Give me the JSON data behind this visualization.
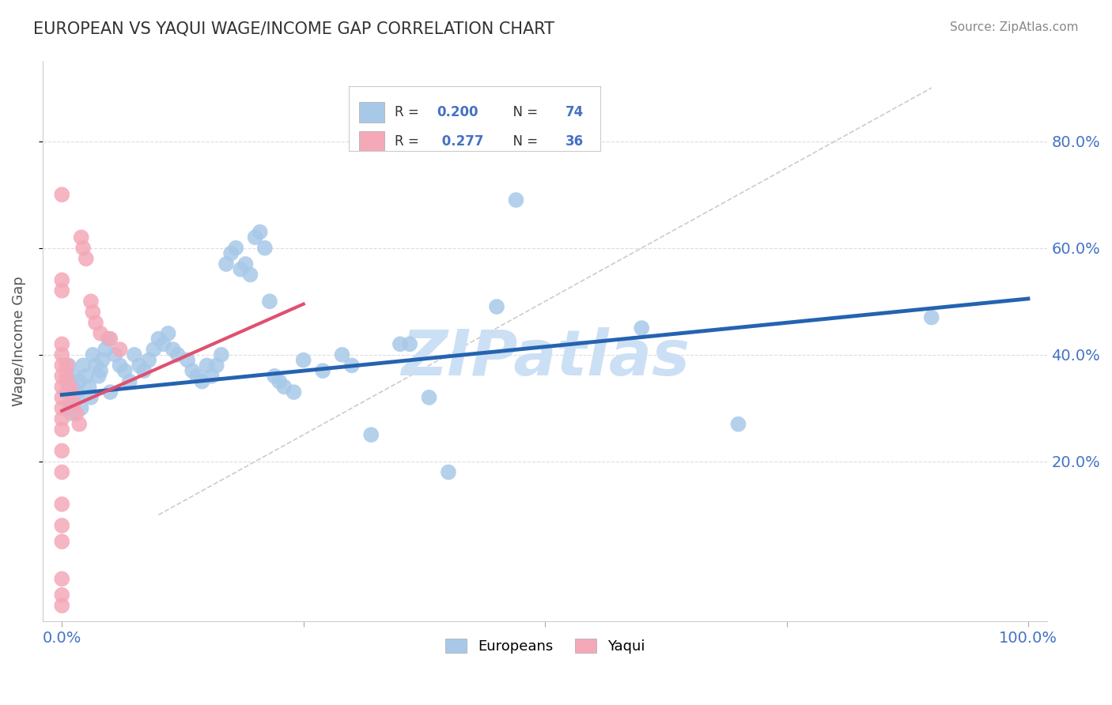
{
  "title": "EUROPEAN VS YAQUI WAGE/INCOME GAP CORRELATION CHART",
  "source": "Source: ZipAtlas.com",
  "ylabel": "Wage/Income Gap",
  "xlim": [
    -0.02,
    1.02
  ],
  "ylim": [
    -0.1,
    0.95
  ],
  "european_color": "#a8c8e8",
  "yaqui_color": "#f4a8b8",
  "watermark": "ZIPatlas",
  "watermark_color": "#cce0f5",
  "background_color": "#ffffff",
  "grid_color": "#dddddd",
  "title_color": "#333333",
  "european_points": [
    [
      0.005,
      0.33
    ],
    [
      0.005,
      0.35
    ],
    [
      0.007,
      0.38
    ],
    [
      0.008,
      0.3
    ],
    [
      0.01,
      0.29
    ],
    [
      0.01,
      0.31
    ],
    [
      0.012,
      0.36
    ],
    [
      0.012,
      0.34
    ],
    [
      0.015,
      0.32
    ],
    [
      0.015,
      0.33
    ],
    [
      0.018,
      0.35
    ],
    [
      0.02,
      0.3
    ],
    [
      0.022,
      0.38
    ],
    [
      0.025,
      0.36
    ],
    [
      0.028,
      0.34
    ],
    [
      0.03,
      0.32
    ],
    [
      0.032,
      0.4
    ],
    [
      0.035,
      0.38
    ],
    [
      0.038,
      0.36
    ],
    [
      0.04,
      0.37
    ],
    [
      0.042,
      0.39
    ],
    [
      0.045,
      0.41
    ],
    [
      0.048,
      0.43
    ],
    [
      0.05,
      0.33
    ],
    [
      0.055,
      0.4
    ],
    [
      0.06,
      0.38
    ],
    [
      0.065,
      0.37
    ],
    [
      0.07,
      0.35
    ],
    [
      0.075,
      0.4
    ],
    [
      0.08,
      0.38
    ],
    [
      0.085,
      0.37
    ],
    [
      0.09,
      0.39
    ],
    [
      0.095,
      0.41
    ],
    [
      0.1,
      0.43
    ],
    [
      0.105,
      0.42
    ],
    [
      0.11,
      0.44
    ],
    [
      0.115,
      0.41
    ],
    [
      0.12,
      0.4
    ],
    [
      0.13,
      0.39
    ],
    [
      0.135,
      0.37
    ],
    [
      0.14,
      0.36
    ],
    [
      0.145,
      0.35
    ],
    [
      0.15,
      0.38
    ],
    [
      0.155,
      0.36
    ],
    [
      0.16,
      0.38
    ],
    [
      0.165,
      0.4
    ],
    [
      0.17,
      0.57
    ],
    [
      0.175,
      0.59
    ],
    [
      0.18,
      0.6
    ],
    [
      0.185,
      0.56
    ],
    [
      0.19,
      0.57
    ],
    [
      0.195,
      0.55
    ],
    [
      0.2,
      0.62
    ],
    [
      0.205,
      0.63
    ],
    [
      0.21,
      0.6
    ],
    [
      0.215,
      0.5
    ],
    [
      0.22,
      0.36
    ],
    [
      0.225,
      0.35
    ],
    [
      0.23,
      0.34
    ],
    [
      0.24,
      0.33
    ],
    [
      0.25,
      0.39
    ],
    [
      0.27,
      0.37
    ],
    [
      0.29,
      0.4
    ],
    [
      0.3,
      0.38
    ],
    [
      0.32,
      0.25
    ],
    [
      0.35,
      0.42
    ],
    [
      0.36,
      0.42
    ],
    [
      0.38,
      0.32
    ],
    [
      0.4,
      0.18
    ],
    [
      0.45,
      0.49
    ],
    [
      0.47,
      0.69
    ],
    [
      0.6,
      0.45
    ],
    [
      0.7,
      0.27
    ],
    [
      0.9,
      0.47
    ]
  ],
  "yaqui_points": [
    [
      0.0,
      0.7
    ],
    [
      0.0,
      0.54
    ],
    [
      0.0,
      0.52
    ],
    [
      0.0,
      0.42
    ],
    [
      0.0,
      0.4
    ],
    [
      0.0,
      0.38
    ],
    [
      0.0,
      0.36
    ],
    [
      0.0,
      0.34
    ],
    [
      0.0,
      0.32
    ],
    [
      0.0,
      0.3
    ],
    [
      0.0,
      0.28
    ],
    [
      0.0,
      0.26
    ],
    [
      0.0,
      0.22
    ],
    [
      0.0,
      0.18
    ],
    [
      0.0,
      0.12
    ],
    [
      0.0,
      0.08
    ],
    [
      0.0,
      0.05
    ],
    [
      0.0,
      -0.02
    ],
    [
      0.0,
      -0.05
    ],
    [
      0.0,
      -0.07
    ],
    [
      0.005,
      0.38
    ],
    [
      0.005,
      0.36
    ],
    [
      0.008,
      0.34
    ],
    [
      0.01,
      0.33
    ],
    [
      0.012,
      0.31
    ],
    [
      0.015,
      0.29
    ],
    [
      0.018,
      0.27
    ],
    [
      0.02,
      0.62
    ],
    [
      0.022,
      0.6
    ],
    [
      0.025,
      0.58
    ],
    [
      0.03,
      0.5
    ],
    [
      0.032,
      0.48
    ],
    [
      0.035,
      0.46
    ],
    [
      0.04,
      0.44
    ],
    [
      0.05,
      0.43
    ],
    [
      0.06,
      0.41
    ]
  ],
  "blue_line_x": [
    0.0,
    1.0
  ],
  "blue_line_y": [
    0.325,
    0.505
  ],
  "pink_line_x": [
    0.0,
    0.25
  ],
  "pink_line_y": [
    0.295,
    0.495
  ],
  "ref_line_x": [
    0.1,
    0.9
  ],
  "ref_line_y": [
    0.1,
    0.9
  ],
  "ytick_right_positions": [
    0.2,
    0.4,
    0.6,
    0.8
  ],
  "ytick_right_labels": [
    "20.0%",
    "40.0%",
    "60.0%",
    "80.0%"
  ],
  "tick_label_color": "#4472c4"
}
